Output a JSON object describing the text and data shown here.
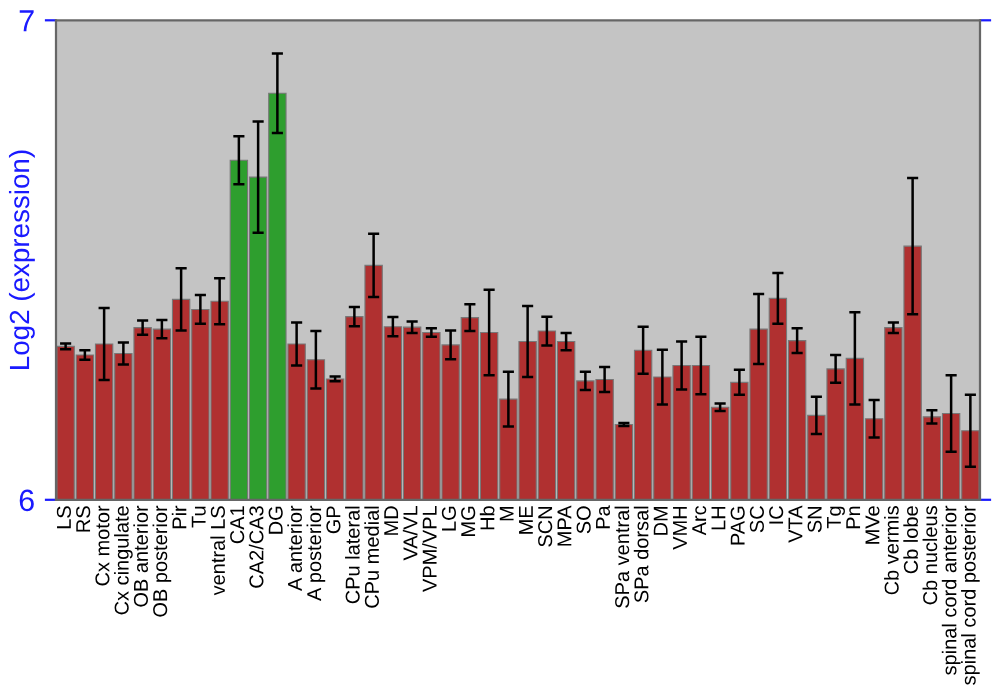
{
  "chart_data": {
    "type": "bar",
    "ylabel": "Log2 (expression)",
    "categories": [
      "LS",
      "RS",
      "Cx motor",
      "Cx cingulate",
      "OB anterior",
      "OB posterior",
      "Pir",
      "Tu",
      "ventral LS",
      "CA1",
      "CA2/CA3",
      "DG",
      "A anterior",
      "A posterior",
      "GP",
      "CPu lateral",
      "CPu medial",
      "MD",
      "VA/VL",
      "VPM/VPL",
      "LG",
      "MG",
      "Hb",
      "M",
      "ME",
      "SCN",
      "MPA",
      "SO",
      "Pa",
      "SPa ventral",
      "SPa dorsal",
      "DM",
      "VMH",
      "Arc",
      "LH",
      "PAG",
      "SC",
      "IC",
      "VTA",
      "SN",
      "Tg",
      "Pn",
      "MVe",
      "Cb vermis",
      "Cb lobe",
      "Cb nucleus",
      "spinal cord anterior",
      "spinal cord posterior"
    ],
    "values": [
      6.32,
      6.302,
      6.325,
      6.305,
      6.359,
      6.356,
      6.418,
      6.397,
      6.414,
      6.708,
      6.673,
      6.848,
      6.325,
      6.292,
      6.252,
      6.382,
      6.489,
      6.361,
      6.36,
      6.349,
      6.323,
      6.38,
      6.349,
      6.21,
      6.33,
      6.352,
      6.33,
      6.248,
      6.251,
      6.157,
      6.312,
      6.256,
      6.28,
      6.28,
      6.193,
      6.245,
      6.356,
      6.42,
      6.332,
      6.176,
      6.273,
      6.295,
      6.169,
      6.359,
      6.529,
      6.173,
      6.18,
      6.144
    ],
    "errors": [
      0.006,
      0.01,
      0.075,
      0.023,
      0.015,
      0.019,
      0.065,
      0.03,
      0.048,
      0.05,
      0.116,
      0.083,
      0.045,
      0.06,
      0.005,
      0.02,
      0.066,
      0.02,
      0.012,
      0.009,
      0.03,
      0.028,
      0.089,
      0.057,
      0.074,
      0.03,
      0.018,
      0.019,
      0.026,
      0.003,
      0.049,
      0.057,
      0.05,
      0.06,
      0.008,
      0.026,
      0.073,
      0.053,
      0.026,
      0.039,
      0.029,
      0.096,
      0.039,
      0.011,
      0.142,
      0.014,
      0.08,
      0.075
    ],
    "colors": [
      "#b03030",
      "#b03030",
      "#b03030",
      "#b03030",
      "#b03030",
      "#b03030",
      "#b03030",
      "#b03030",
      "#b03030",
      "#2e9e2e",
      "#2e9e2e",
      "#2e9e2e",
      "#b03030",
      "#b03030",
      "#b03030",
      "#b03030",
      "#b03030",
      "#b03030",
      "#b03030",
      "#b03030",
      "#b03030",
      "#b03030",
      "#b03030",
      "#b03030",
      "#b03030",
      "#b03030",
      "#b03030",
      "#b03030",
      "#b03030",
      "#b03030",
      "#b03030",
      "#b03030",
      "#b03030",
      "#b03030",
      "#b03030",
      "#b03030",
      "#b03030",
      "#b03030",
      "#b03030",
      "#b03030",
      "#b03030",
      "#b03030",
      "#b03030",
      "#b03030",
      "#b03030",
      "#b03030",
      "#b03030",
      "#b03030"
    ],
    "ylim": [
      6,
      7
    ],
    "yticks": [
      6,
      7
    ],
    "grid": false,
    "legend": false
  }
}
